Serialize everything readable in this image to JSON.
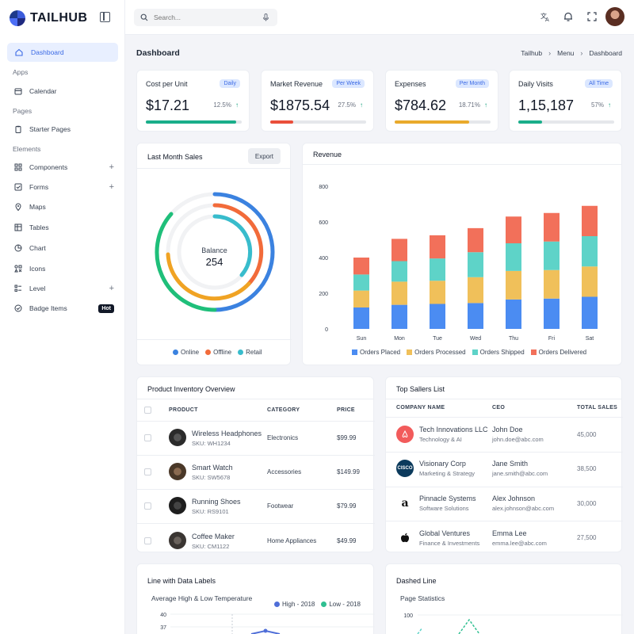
{
  "app": {
    "logo_text": "TAILHUB"
  },
  "sidebar": {
    "active": {
      "label": "Dashboard"
    },
    "sections": {
      "apps": "Apps",
      "pages": "Pages",
      "elements": "Elements"
    },
    "items": {
      "calendar": "Calendar",
      "starter": "Starter Pages",
      "components": "Components",
      "forms": "Forms",
      "maps": "Maps",
      "tables": "Tables",
      "chart": "Chart",
      "icons": "Icons",
      "level": "Level",
      "badge": "Badge Items"
    },
    "plus": "+",
    "hot_badge": "Hot"
  },
  "topbar": {
    "search_placeholder": "Search..."
  },
  "page": {
    "title": "Dashboard",
    "breadcrumb": [
      "Tailhub",
      "Menu",
      "Dashboard"
    ],
    "sep": "›"
  },
  "stats": [
    {
      "title": "Cost per Unit",
      "badge": "Daily",
      "value": "$17.21",
      "pct": "12.5%",
      "arrow": "↑",
      "progress": 0.94,
      "color": "#1aae8a"
    },
    {
      "title": "Market Revenue",
      "badge": "Per Week",
      "value": "$1875.54",
      "pct": "27.5%",
      "arrow": "↑",
      "progress": 0.24,
      "color": "#ea4f3b"
    },
    {
      "title": "Expenses",
      "badge": "Per Month",
      "value": "$784.62",
      "pct": "18.71%",
      "arrow": "↑",
      "progress": 0.78,
      "color": "#e9aa2c"
    },
    {
      "title": "Daily Visits",
      "badge": "All Time",
      "value": "1,15,187",
      "pct": "57%",
      "arrow": "↑",
      "progress": 0.25,
      "color": "#1aae8a"
    }
  ],
  "sales": {
    "title": "Last Month Sales",
    "export": "Export",
    "center_label": "Balance",
    "center_value": "254",
    "rings": [
      {
        "name": "Online",
        "color": "#3b82e0",
        "fraction": 0.72
      },
      {
        "name": "Offline",
        "color": "#f26b3a",
        "fraction": 0.62
      },
      {
        "name": "Retail",
        "color": "#38bccc",
        "fraction": 0.5
      }
    ],
    "outer_green": "#1fbf7a",
    "inner_gold": "#f0a324"
  },
  "chart_data": [
    {
      "type": "bar",
      "stacked": true,
      "title": "Revenue",
      "categories": [
        "Sun",
        "Mon",
        "Tue",
        "Wed",
        "Thu",
        "Fri",
        "Sat"
      ],
      "ylim": [
        0,
        800
      ],
      "yticks": [
        "0",
        "200",
        "400",
        "600",
        "800"
      ],
      "grid": false,
      "legend": "bottom",
      "series": [
        {
          "name": "Orders Placed",
          "color": "#4b8cf2",
          "values": [
            120,
            135,
            140,
            145,
            165,
            170,
            180
          ]
        },
        {
          "name": "Orders Processed",
          "color": "#f0c05a",
          "values": [
            95,
            130,
            130,
            145,
            160,
            160,
            170
          ]
        },
        {
          "name": "Orders Shipped",
          "color": "#5ed3c8",
          "values": [
            90,
            115,
            125,
            140,
            155,
            160,
            170
          ]
        },
        {
          "name": "Orders Delivered",
          "color": "#f2705a",
          "values": [
            95,
            125,
            130,
            135,
            150,
            160,
            170
          ]
        }
      ]
    },
    {
      "type": "line",
      "title": "Average High & Low Temperature",
      "ylim": [
        37,
        40
      ],
      "yticks": [
        "40",
        "37"
      ],
      "legend": "top-right",
      "series": [
        {
          "name": "High - 2018",
          "color": "#4f6ed8"
        },
        {
          "name": "Low - 2018",
          "color": "#2fbf91"
        }
      ]
    },
    {
      "type": "line",
      "title": "Page Statistics",
      "yticks": [
        "100"
      ]
    }
  ],
  "inventory": {
    "title": "Product Inventory Overview",
    "headers": [
      "PRODUCT",
      "CATEGORY",
      "PRICE"
    ],
    "rows": [
      {
        "name": "Wireless Headphones",
        "sku": "SKU: WH1234",
        "category": "Electronics",
        "price": "$99.99",
        "img": "#2b2b2b"
      },
      {
        "name": "Smart Watch",
        "sku": "SKU: SW5678",
        "category": "Accessories",
        "price": "$149.99",
        "img": "#5a4535"
      },
      {
        "name": "Running Shoes",
        "sku": "SKU: RS9101",
        "category": "Footwear",
        "price": "$79.99",
        "img": "#1e1e1e"
      },
      {
        "name": "Coffee Maker",
        "sku": "SKU: CM1122",
        "category": "Home Appliances",
        "price": "$49.99",
        "img": "#3a3532"
      }
    ]
  },
  "sellers": {
    "title": "Top Sallers List",
    "headers": [
      "COMPANY NAME",
      "CEO",
      "TOTAL SALES"
    ],
    "rows": [
      {
        "company": "Tech Innovations LLC",
        "sector": "Technology & AI",
        "ceo": "John Doe",
        "email": "john.doe@abc.com",
        "sales": "45,000",
        "logo_bg": "#f25b5b",
        "logo_text": ""
      },
      {
        "company": "Visionary Corp",
        "sector": "Marketing & Strategy",
        "ceo": "Jane Smith",
        "email": "jane.smith@abc.com",
        "sales": "38,500",
        "logo_bg": "#0b3a5c",
        "logo_text": "CISCO"
      },
      {
        "company": "Pinnacle Systems",
        "sector": "Software Solutions",
        "ceo": "Alex Johnson",
        "email": "alex.johnson@abc.com",
        "sales": "30,000",
        "logo_bg": "#ffffff",
        "logo_text": "a"
      },
      {
        "company": "Global Ventures",
        "sector": "Finance & Investments",
        "ceo": "Emma Lee",
        "email": "emma.lee@abc.com",
        "sales": "27,500",
        "logo_bg": "#ffffff",
        "logo_text": ""
      }
    ]
  },
  "line_card": {
    "title": "Line with Data Labels"
  },
  "dashed_card": {
    "title": "Dashed Line"
  }
}
